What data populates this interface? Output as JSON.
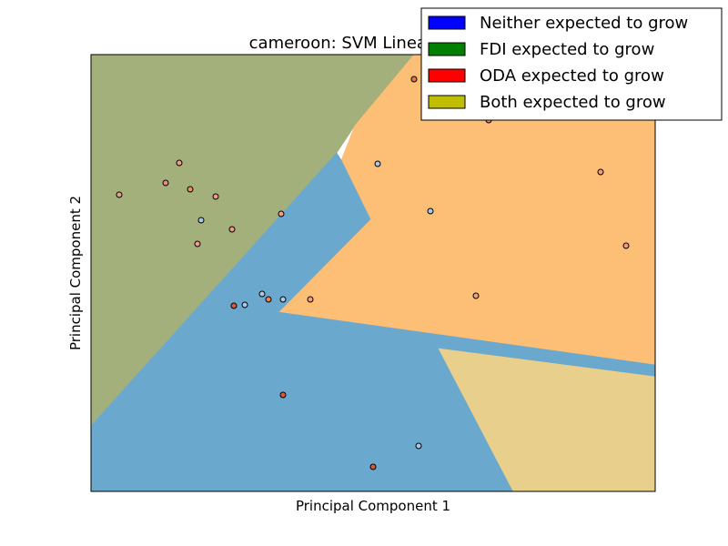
{
  "chart_data": {
    "type": "scatter",
    "title": "cameroon: SVM Linear",
    "xlabel": "Principal Component 1",
    "ylabel": "Principal Component 2",
    "xlim": [
      0,
      620
    ],
    "ylim": [
      0,
      480
    ],
    "xticks": [],
    "yticks": [],
    "grid": false,
    "legend_position": "top-right",
    "legend": [
      {
        "label": "Neither expected to grow",
        "color": "#0000ff"
      },
      {
        "label": "FDI expected to grow",
        "color": "#008000"
      },
      {
        "label": "ODA expected to grow",
        "color": "#ff0000"
      },
      {
        "label": "Both expected to grow",
        "color": "#bfbf00"
      }
    ],
    "regions": [
      {
        "class": "FDI expected to grow",
        "color": "#a4b07c",
        "polygon": [
          [
            0,
            480
          ],
          [
            355,
            480
          ],
          [
            290,
            402
          ],
          [
            270,
            372
          ],
          [
            0,
            72
          ]
        ]
      },
      {
        "class": "ODA expected to grow",
        "color": "#fdbe76",
        "polygon": [
          [
            355,
            480
          ],
          [
            620,
            480
          ],
          [
            620,
            139
          ],
          [
            206,
            197
          ],
          [
            307,
            299
          ],
          [
            275,
            364
          ],
          [
            290,
            402
          ]
        ]
      },
      {
        "class": "Neither expected to grow",
        "color": "#6ba8ce",
        "polygon": [
          [
            0,
            72
          ],
          [
            270,
            372
          ],
          [
            275,
            364
          ],
          [
            307,
            299
          ],
          [
            206,
            197
          ],
          [
            620,
            139
          ],
          [
            620,
            126
          ],
          [
            382,
            157
          ],
          [
            464,
            0
          ],
          [
            0,
            0
          ]
        ]
      },
      {
        "class": "Both expected to grow",
        "color": "#e8cf8c",
        "polygon": [
          [
            382,
            157
          ],
          [
            620,
            126
          ],
          [
            620,
            0
          ],
          [
            464,
            0
          ]
        ]
      }
    ],
    "points": [
      {
        "x": 31,
        "y": 326,
        "color": "#f0a080"
      },
      {
        "x": 82,
        "y": 339,
        "color": "#f08a70"
      },
      {
        "x": 97,
        "y": 361,
        "color": "#f0a080"
      },
      {
        "x": 109,
        "y": 332,
        "color": "#ee8f6a"
      },
      {
        "x": 137,
        "y": 324,
        "color": "#f09a80"
      },
      {
        "x": 121,
        "y": 298,
        "color": "#a8c8e8"
      },
      {
        "x": 117,
        "y": 272,
        "color": "#f0a080"
      },
      {
        "x": 155,
        "y": 288,
        "color": "#f09a80"
      },
      {
        "x": 209,
        "y": 305,
        "color": "#f0a080"
      },
      {
        "x": 157,
        "y": 204,
        "color": "#d85a3a"
      },
      {
        "x": 169,
        "y": 205,
        "color": "#a8c8e8"
      },
      {
        "x": 188,
        "y": 217,
        "color": "#a8c8e8"
      },
      {
        "x": 195,
        "y": 211,
        "color": "#f08050"
      },
      {
        "x": 211,
        "y": 211,
        "color": "#a8c8e8"
      },
      {
        "x": 241,
        "y": 211,
        "color": "#f0a080"
      },
      {
        "x": 211,
        "y": 106,
        "color": "#d85a3a"
      },
      {
        "x": 315,
        "y": 360,
        "color": "#a8c8e8"
      },
      {
        "x": 373,
        "y": 308,
        "color": "#a8c8e8"
      },
      {
        "x": 355,
        "y": 453,
        "color": "#e07a50"
      },
      {
        "x": 437,
        "y": 408,
        "color": "#f08a70"
      },
      {
        "x": 560,
        "y": 351,
        "color": "#f0a080"
      },
      {
        "x": 588,
        "y": 270,
        "color": "#f0a080"
      },
      {
        "x": 423,
        "y": 215,
        "color": "#f0a080"
      },
      {
        "x": 360,
        "y": 50,
        "color": "#a8c8e8"
      },
      {
        "x": 310,
        "y": 27,
        "color": "#d85a3a"
      }
    ]
  }
}
